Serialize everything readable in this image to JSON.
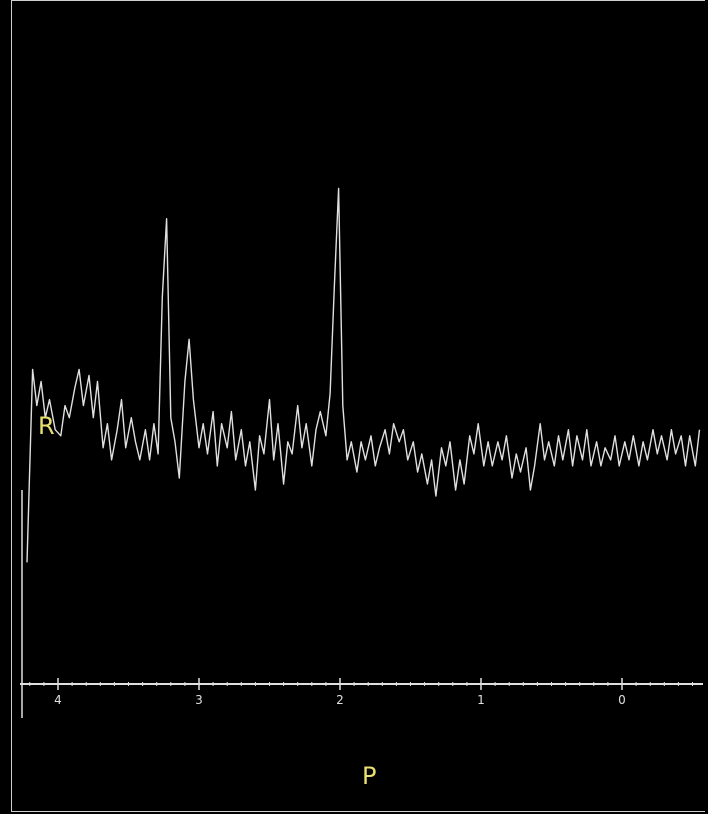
{
  "viewer": {
    "series_label": "R",
    "axis_label": "P"
  },
  "chart_data": {
    "type": "line",
    "xlabel": "P",
    "ylabel": "R",
    "x_reversed": true,
    "xlim": [
      4.25,
      -0.55
    ],
    "ylim": [
      0,
      100
    ],
    "xticks": [
      4,
      3,
      2,
      1,
      0
    ],
    "xtick_labels": [
      "4",
      "3",
      "2",
      "1",
      "0"
    ],
    "grid": false,
    "series": [
      {
        "color": "#e0e0e0",
        "points": [
          [
            4.22,
            20
          ],
          [
            4.18,
            52
          ],
          [
            4.15,
            46
          ],
          [
            4.12,
            50
          ],
          [
            4.09,
            44
          ],
          [
            4.06,
            47
          ],
          [
            4.02,
            42
          ],
          [
            3.98,
            41
          ],
          [
            3.95,
            46
          ],
          [
            3.92,
            44
          ],
          [
            3.88,
            49
          ],
          [
            3.85,
            52
          ],
          [
            3.82,
            46
          ],
          [
            3.78,
            51
          ],
          [
            3.75,
            44
          ],
          [
            3.72,
            50
          ],
          [
            3.68,
            39
          ],
          [
            3.65,
            43
          ],
          [
            3.62,
            37
          ],
          [
            3.58,
            42
          ],
          [
            3.55,
            47
          ],
          [
            3.52,
            39
          ],
          [
            3.48,
            44
          ],
          [
            3.45,
            40
          ],
          [
            3.42,
            37
          ],
          [
            3.38,
            42
          ],
          [
            3.35,
            37
          ],
          [
            3.32,
            43
          ],
          [
            3.29,
            38
          ],
          [
            3.26,
            64
          ],
          [
            3.23,
            77
          ],
          [
            3.2,
            44
          ],
          [
            3.17,
            40
          ],
          [
            3.14,
            34
          ],
          [
            3.1,
            50
          ],
          [
            3.07,
            57
          ],
          [
            3.04,
            47
          ],
          [
            3.0,
            39
          ],
          [
            2.97,
            43
          ],
          [
            2.94,
            38
          ],
          [
            2.9,
            45
          ],
          [
            2.87,
            36
          ],
          [
            2.84,
            43
          ],
          [
            2.8,
            39
          ],
          [
            2.77,
            45
          ],
          [
            2.74,
            37
          ],
          [
            2.7,
            42
          ],
          [
            2.67,
            36
          ],
          [
            2.64,
            40
          ],
          [
            2.6,
            32
          ],
          [
            2.57,
            41
          ],
          [
            2.54,
            38
          ],
          [
            2.5,
            47
          ],
          [
            2.47,
            37
          ],
          [
            2.44,
            43
          ],
          [
            2.4,
            33
          ],
          [
            2.37,
            40
          ],
          [
            2.34,
            38
          ],
          [
            2.3,
            46
          ],
          [
            2.27,
            39
          ],
          [
            2.24,
            43
          ],
          [
            2.2,
            36
          ],
          [
            2.17,
            42
          ],
          [
            2.14,
            45
          ],
          [
            2.1,
            41
          ],
          [
            2.07,
            48
          ],
          [
            2.04,
            66
          ],
          [
            2.01,
            82
          ],
          [
            1.98,
            46
          ],
          [
            1.95,
            37
          ],
          [
            1.92,
            40
          ],
          [
            1.88,
            35
          ],
          [
            1.85,
            40
          ],
          [
            1.82,
            37
          ],
          [
            1.78,
            41
          ],
          [
            1.75,
            36
          ],
          [
            1.72,
            39
          ],
          [
            1.68,
            42
          ],
          [
            1.65,
            38
          ],
          [
            1.62,
            43
          ],
          [
            1.58,
            40
          ],
          [
            1.55,
            42
          ],
          [
            1.52,
            37
          ],
          [
            1.48,
            40
          ],
          [
            1.45,
            35
          ],
          [
            1.42,
            38
          ],
          [
            1.38,
            33
          ],
          [
            1.35,
            37
          ],
          [
            1.32,
            31
          ],
          [
            1.28,
            39
          ],
          [
            1.25,
            36
          ],
          [
            1.22,
            40
          ],
          [
            1.18,
            32
          ],
          [
            1.15,
            37
          ],
          [
            1.12,
            33
          ],
          [
            1.08,
            41
          ],
          [
            1.05,
            38
          ],
          [
            1.02,
            43
          ],
          [
            0.98,
            36
          ],
          [
            0.95,
            40
          ],
          [
            0.92,
            36
          ],
          [
            0.88,
            40
          ],
          [
            0.85,
            37
          ],
          [
            0.82,
            41
          ],
          [
            0.78,
            34
          ],
          [
            0.75,
            38
          ],
          [
            0.72,
            35
          ],
          [
            0.68,
            39
          ],
          [
            0.65,
            32
          ],
          [
            0.62,
            36
          ],
          [
            0.58,
            43
          ],
          [
            0.55,
            37
          ],
          [
            0.52,
            40
          ],
          [
            0.48,
            36
          ],
          [
            0.45,
            41
          ],
          [
            0.42,
            37
          ],
          [
            0.38,
            42
          ],
          [
            0.35,
            36
          ],
          [
            0.32,
            41
          ],
          [
            0.28,
            37
          ],
          [
            0.25,
            42
          ],
          [
            0.22,
            36
          ],
          [
            0.18,
            40
          ],
          [
            0.15,
            36
          ],
          [
            0.12,
            39
          ],
          [
            0.08,
            37
          ],
          [
            0.05,
            41
          ],
          [
            0.02,
            36
          ],
          [
            -0.02,
            40
          ],
          [
            -0.05,
            37
          ],
          [
            -0.08,
            41
          ],
          [
            -0.12,
            36
          ],
          [
            -0.15,
            40
          ],
          [
            -0.18,
            37
          ],
          [
            -0.22,
            42
          ],
          [
            -0.25,
            38
          ],
          [
            -0.28,
            41
          ],
          [
            -0.32,
            37
          ],
          [
            -0.35,
            42
          ],
          [
            -0.38,
            38
          ],
          [
            -0.42,
            41
          ],
          [
            -0.45,
            36
          ],
          [
            -0.48,
            41
          ],
          [
            -0.52,
            36
          ],
          [
            -0.55,
            42
          ]
        ]
      }
    ]
  }
}
